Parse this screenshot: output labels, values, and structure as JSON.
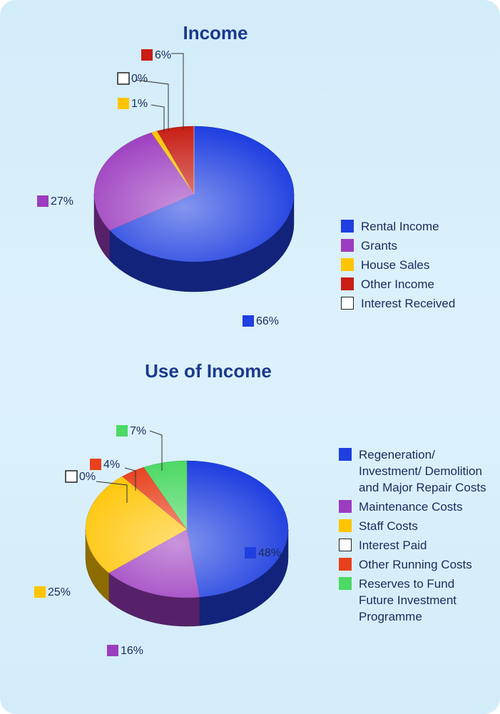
{
  "chart_data": [
    {
      "type": "pie",
      "title": "Income",
      "categories": [
        "Rental Income",
        "Grants",
        "House Sales",
        "Other Income",
        "Interest Received"
      ],
      "values": [
        66,
        27,
        1,
        6,
        0
      ],
      "value_labels": [
        "66%",
        "27%",
        "1%",
        "6%",
        "0%"
      ],
      "colors": [
        "#1f3fe0",
        "#9c3cbf",
        "#ffc400",
        "#c81e14",
        "#ffffff"
      ]
    },
    {
      "type": "pie",
      "title": "Use of Income",
      "categories": [
        "Regeneration/ Investment/ Demolition and Major Repair Costs",
        "Maintenance Costs",
        "Staff Costs",
        "Interest Paid",
        "Other Running Costs",
        "Reserves to Fund Future Investment Programme"
      ],
      "values": [
        48,
        16,
        25,
        0,
        4,
        7
      ],
      "value_labels": [
        "48%",
        "16%",
        "25%",
        "0%",
        "4%",
        "7%"
      ],
      "colors": [
        "#1f3fe0",
        "#9c3cbf",
        "#ffc400",
        "#ffffff",
        "#e8401c",
        "#4cd964"
      ]
    }
  ]
}
